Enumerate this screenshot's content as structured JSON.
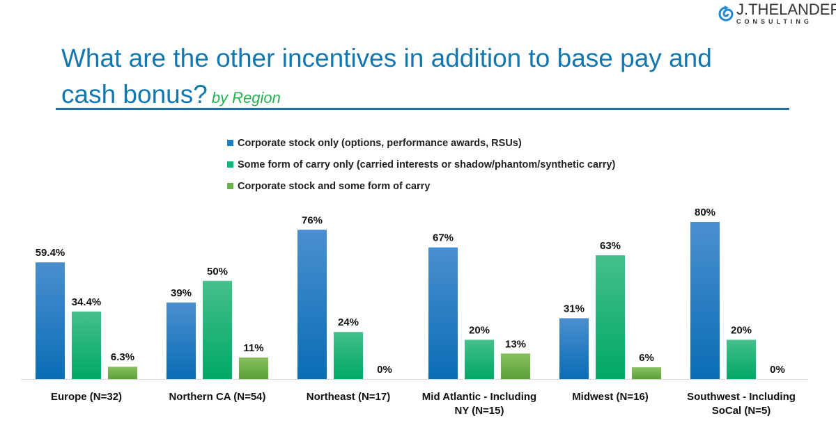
{
  "header": {
    "title": "What are the other incentives in addition to base pay and cash bonus?",
    "subtitle": "by Region",
    "logo_name": "J.THELANDER",
    "logo_tagline": "CONSULTING"
  },
  "chart_data": {
    "type": "bar",
    "title": "What are the other incentives in addition to base pay and cash bonus? by Region",
    "categories": [
      "Europe (N=32)",
      "Northern CA (N=54)",
      "Northeast (N=17)",
      "Mid Atlantic - Including NY (N=15)",
      "Midwest (N=16)",
      "Southwest - Including SoCal (N=5)"
    ],
    "category_lines": [
      [
        "Europe (N=32)"
      ],
      [
        "Northern CA (N=54)"
      ],
      [
        "Northeast (N=17)"
      ],
      [
        "Mid Atlantic - Including",
        "NY (N=15)"
      ],
      [
        "Midwest (N=16)"
      ],
      [
        "Southwest - Including",
        "SoCal (N=5)"
      ]
    ],
    "series": [
      {
        "name": "Corporate stock only (options, performance awards, RSUs)",
        "color": "#1f7cc1",
        "values": [
          59.4,
          39,
          76,
          67,
          31,
          80
        ],
        "labels": [
          "59.4%",
          "39%",
          "76%",
          "67%",
          "31%",
          "80%"
        ]
      },
      {
        "name": "Some form of carry only (carried interests or shadow/phantom/synthetic carry)",
        "color": "#17b478",
        "values": [
          34.4,
          50,
          24,
          20,
          63,
          20
        ],
        "labels": [
          "34.4%",
          "50%",
          "24%",
          "20%",
          "63%",
          "20%"
        ]
      },
      {
        "name": "Corporate stock and some form of carry",
        "color": "#6ab04c",
        "values": [
          6.3,
          11,
          0,
          13,
          6,
          0
        ],
        "labels": [
          "6.3%",
          "11%",
          "0%",
          "13%",
          "6%",
          "0%"
        ]
      }
    ],
    "ylim": [
      0,
      80
    ],
    "legend": "top-center",
    "grid": false
  }
}
